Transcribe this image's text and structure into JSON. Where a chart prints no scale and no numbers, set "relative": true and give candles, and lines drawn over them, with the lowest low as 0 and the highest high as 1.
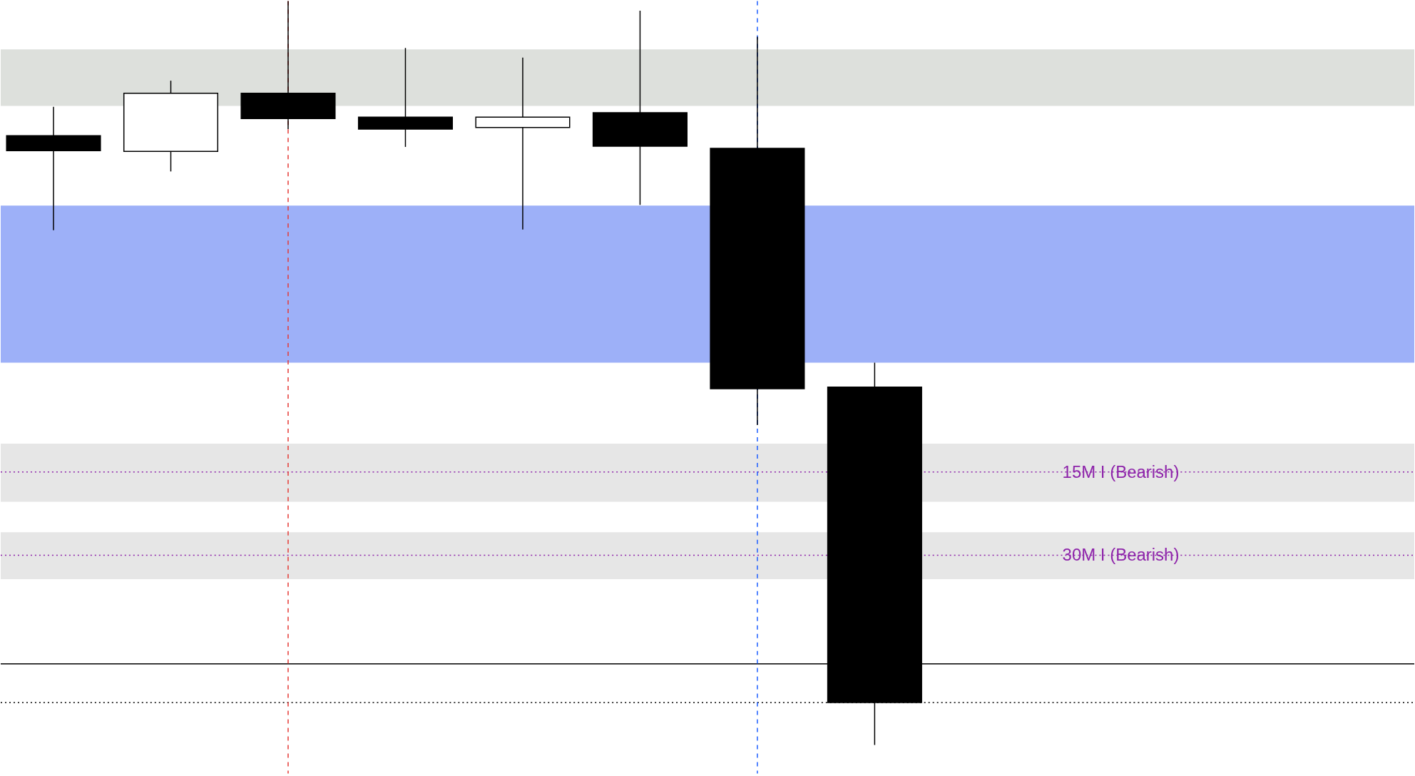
{
  "chart_data": {
    "type": "candlestick",
    "relative": true,
    "categories": [
      null,
      null,
      null,
      null,
      null,
      null,
      null,
      null
    ],
    "ohlc": [
      [
        0.819,
        0.858,
        0.692,
        0.799
      ],
      [
        0.798,
        0.893,
        0.771,
        0.876
      ],
      [
        0.876,
        1,
        0.828,
        0.842
      ],
      [
        0.844,
        0.937,
        0.804,
        0.828
      ],
      [
        0.83,
        0.924,
        0.693,
        0.844
      ],
      [
        0.85,
        0.987,
        0.726,
        0.805
      ],
      [
        0.802,
        0.952,
        0.43,
        0.479
      ],
      [
        0.481,
        0.514,
        0,
        0.057
      ]
    ],
    "colors": [
      "#000000",
      "#ffffff",
      "#000000",
      "#000000",
      "#ffffff",
      "#000000",
      "#000000",
      "#000000"
    ],
    "bands": [
      {
        "axis": "y",
        "from": 0.859,
        "to": 0.935,
        "color": "#dde0dc"
      },
      {
        "axis": "y",
        "from": 0.514,
        "to": 0.725,
        "color": "#9db0f8"
      },
      {
        "axis": "y",
        "from": 0.327,
        "to": 0.405,
        "color": "#e6e6e6",
        "label": "15M I (Bearish)"
      },
      {
        "axis": "y",
        "from": 0.223,
        "to": 0.286,
        "color": "#e6e6e6",
        "label": "30M I (Bearish)"
      }
    ],
    "ref_lines": [
      {
        "axis": "y",
        "value": 0.367,
        "color": "#8e24aa",
        "line_style": "dotted"
      },
      {
        "axis": "y",
        "value": 0.255,
        "color": "#8e24aa",
        "line_style": "dotted"
      },
      {
        "axis": "y",
        "value": 0.109,
        "color": "#000000",
        "line_style": "solid"
      },
      {
        "axis": "y",
        "value": 0.057,
        "color": "#000000",
        "line_style": "dotted"
      }
    ]
  }
}
